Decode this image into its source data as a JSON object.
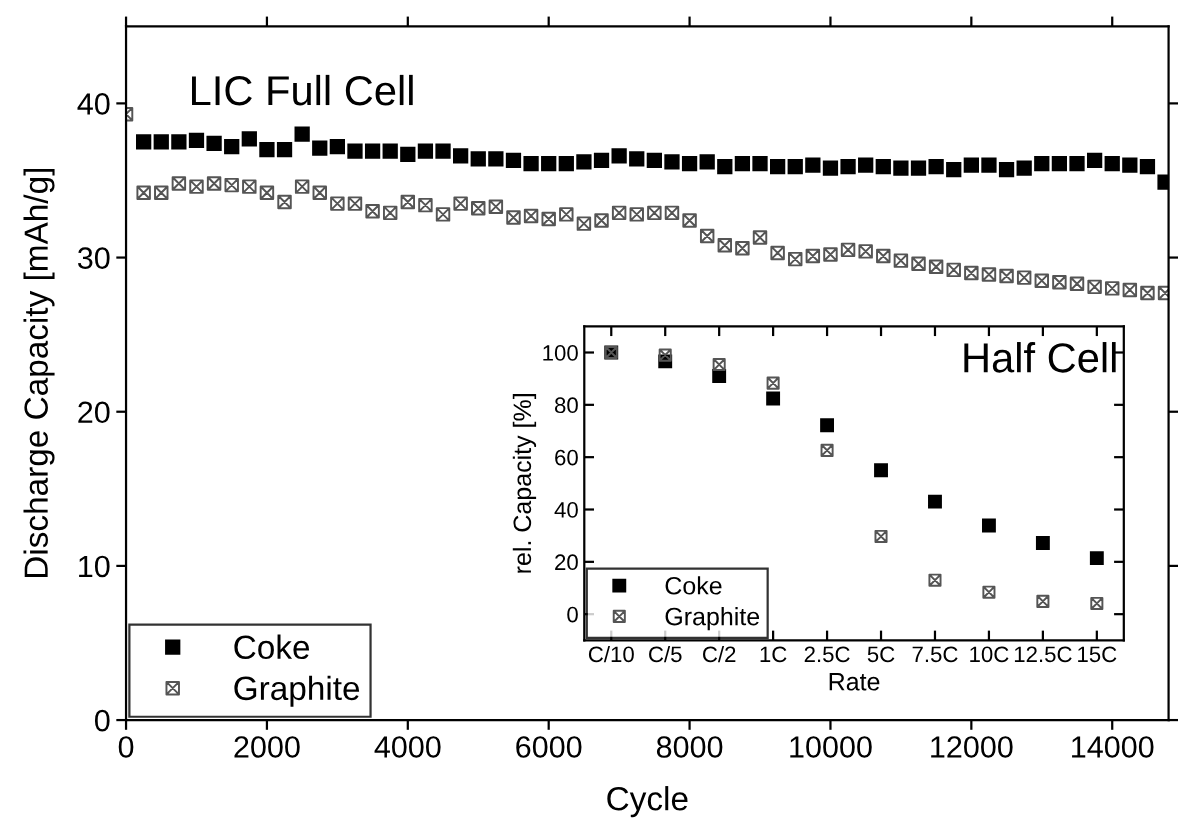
{
  "chart_data": [
    {
      "type": "scatter",
      "xlabel": "Cycle",
      "ylabel": "Discharge Capacity [mAh/g]",
      "annotations": [
        "LIC Full Cell"
      ],
      "x": [
        0,
        250,
        500,
        750,
        1000,
        1250,
        1500,
        1750,
        2000,
        2250,
        2500,
        2750,
        3000,
        3250,
        3500,
        3750,
        4000,
        4250,
        4500,
        4750,
        5000,
        5250,
        5500,
        5750,
        6000,
        6250,
        6500,
        6750,
        7000,
        7250,
        7500,
        7750,
        8000,
        8250,
        8500,
        8750,
        9000,
        9250,
        9500,
        9750,
        10000,
        10250,
        10500,
        10750,
        11000,
        11250,
        11500,
        11750,
        12000,
        12250,
        12500,
        12750,
        13000,
        13250,
        13500,
        13750,
        14000,
        14250,
        14500,
        14750
      ],
      "series": [
        {
          "name": "Coke",
          "color": "#000000",
          "marker": "square",
          "values": [
            null,
            37.5,
            37.5,
            37.5,
            37.6,
            37.4,
            37.2,
            37.7,
            37.0,
            37.0,
            38.0,
            37.1,
            37.2,
            36.9,
            36.9,
            36.9,
            36.7,
            36.9,
            36.9,
            36.6,
            36.4,
            36.4,
            36.3,
            36.1,
            36.1,
            36.1,
            36.2,
            36.3,
            36.6,
            36.4,
            36.3,
            36.2,
            36.1,
            36.2,
            35.9,
            36.1,
            36.1,
            35.9,
            35.9,
            36.0,
            35.8,
            35.9,
            36.0,
            35.9,
            35.8,
            35.8,
            35.9,
            35.7,
            36.0,
            36.0,
            35.7,
            35.8,
            36.1,
            36.1,
            36.1,
            36.3,
            36.1,
            36.0,
            35.9,
            34.9
          ]
        },
        {
          "name": "Graphite",
          "color": "#555555",
          "marker": "cross",
          "values": [
            39.3,
            34.2,
            34.2,
            34.8,
            34.6,
            34.8,
            34.7,
            34.6,
            34.2,
            33.6,
            34.6,
            34.2,
            33.5,
            33.5,
            33.0,
            32.9,
            33.6,
            33.4,
            32.8,
            33.5,
            33.2,
            33.3,
            32.6,
            32.7,
            32.5,
            32.8,
            32.2,
            32.4,
            32.9,
            32.8,
            32.9,
            32.9,
            32.4,
            31.4,
            30.8,
            30.6,
            31.3,
            30.3,
            29.9,
            30.1,
            30.2,
            30.5,
            30.4,
            30.1,
            29.8,
            29.6,
            29.4,
            29.2,
            29.0,
            28.9,
            28.8,
            28.7,
            28.5,
            28.4,
            28.3,
            28.1,
            28.0,
            27.9,
            27.7,
            27.7
          ]
        }
      ],
      "xlim": [
        0,
        14800
      ],
      "xticks": [
        0,
        2000,
        4000,
        6000,
        8000,
        10000,
        12000,
        14000
      ],
      "ylim": [
        0,
        45
      ],
      "yticks": [
        0,
        10,
        20,
        30,
        40
      ],
      "grid": false,
      "legend": "bottom left"
    },
    {
      "type": "scatter",
      "xlabel": "Rate",
      "ylabel": "rel. Capacity [%]",
      "annotations": [
        "Half Cell"
      ],
      "categories": [
        "C/10",
        "C/5",
        "C/2",
        "1C",
        "2.5C",
        "5C",
        "7.5C",
        "10C",
        "12.5C",
        "15C"
      ],
      "series": [
        {
          "name": "Coke",
          "color": "#000000",
          "marker": "square",
          "values": [
            100,
            96.6,
            91,
            82.4,
            72.2,
            55,
            43,
            33.9,
            27.2,
            21.4
          ]
        },
        {
          "name": "Graphite",
          "color": "#555555",
          "marker": "cross",
          "values": [
            100,
            99,
            95.4,
            88.3,
            62.6,
            29.7,
            13,
            8.4,
            4.9,
            4.1
          ]
        }
      ],
      "ylim": [
        -10,
        110
      ],
      "yticks": [
        0,
        20,
        40,
        60,
        80,
        100
      ],
      "grid": false,
      "legend": "bottom left"
    }
  ]
}
